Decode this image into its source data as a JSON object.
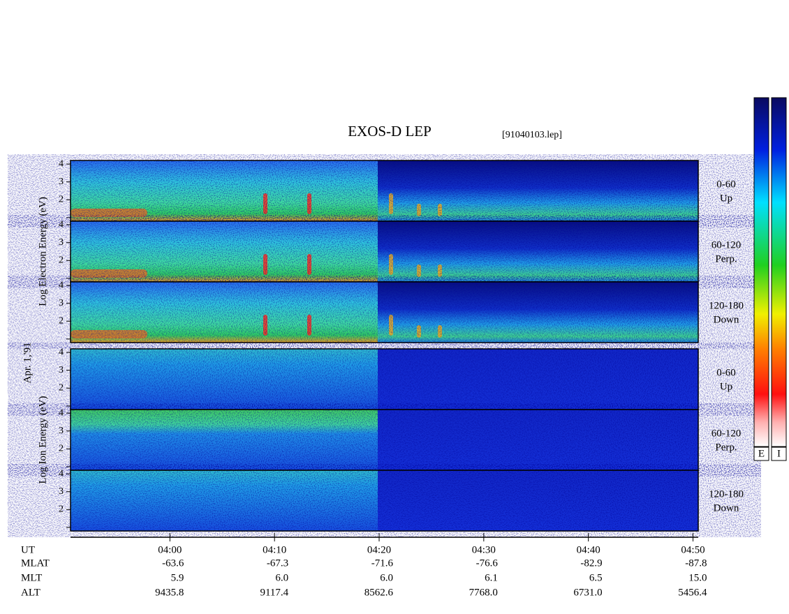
{
  "title": "EXOS-D LEP",
  "file": "[91040103.lep]",
  "date": "Apr. 1,'91",
  "chart_data": {
    "type": "spectrogram",
    "xlim": [
      230.5,
      290.5
    ],
    "xticks": [
      {
        "value": 240,
        "label": "04:00"
      },
      {
        "value": 250,
        "label": "04:10"
      },
      {
        "value": 260,
        "label": "04:20"
      },
      {
        "value": 270,
        "label": "04:30"
      },
      {
        "value": 280,
        "label": "04:40"
      },
      {
        "value": 290,
        "label": "04:50"
      }
    ],
    "ylim": [
      0.8,
      4.2
    ],
    "yticks": [
      2,
      3,
      4
    ],
    "minor_yticks": [
      1
    ],
    "groups": [
      {
        "ylabel": "Log Electron Energy (eV)",
        "panels": [
          {
            "label": [
              "0-60",
              "Up"
            ]
          },
          {
            "label": [
              "60-120",
              "Perp."
            ]
          },
          {
            "label": [
              "120-180",
              "Down"
            ]
          }
        ]
      },
      {
        "ylabel": "Log Ion Energy (eV)",
        "panels": [
          {
            "label": [
              "0-60",
              "Up"
            ]
          },
          {
            "label": [
              "60-120",
              "Perp."
            ]
          },
          {
            "label": [
              "120-180",
              "Down"
            ]
          }
        ]
      }
    ]
  },
  "footer": {
    "rows": [
      {
        "label": "UT"
      },
      {
        "label": "MLAT",
        "values": [
          "-63.6",
          "-67.3",
          "-71.6",
          "-76.6",
          "-82.9",
          "-87.8"
        ]
      },
      {
        "label": "MLT",
        "values": [
          "5.9",
          "6.0",
          "6.0",
          "6.1",
          "6.5",
          "15.0"
        ]
      },
      {
        "label": "ALT",
        "values": [
          "9435.8",
          "9117.4",
          "8562.6",
          "7768.0",
          "6731.0",
          "5456.4"
        ]
      }
    ]
  },
  "colorbar": {
    "labels": [
      "E",
      "I"
    ]
  }
}
